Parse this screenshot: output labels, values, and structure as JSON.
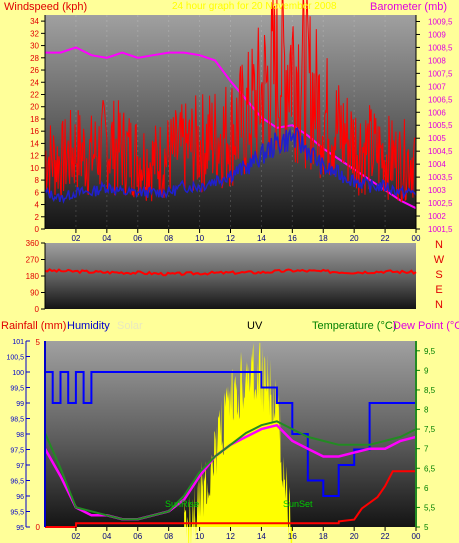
{
  "header": {
    "windspeed": "Windspeed (kph)",
    "subtitle": "24 hour graph for 20 November 2008",
    "barometer": "Barometer (mb)",
    "rainfall": "Rainfall (mm)",
    "humidity": "Humidity",
    "solar": "Solar",
    "uv": "UV",
    "temperature": "Temperature (°C)",
    "dewpoint": "Dew Point (°C)"
  },
  "colors": {
    "background": "#ffff99",
    "wind_gust": "#ff0000",
    "wind_avg": "#2020cc",
    "barometer": "#ff00ff",
    "direction": "#ff0000",
    "rain": "#ff0000",
    "humidity": "#0000ff",
    "uv": "#ffff00",
    "temperature": "#228b22",
    "dewpoint": "#ff00ff"
  },
  "chart_data": [
    {
      "type": "line",
      "xlabel": "",
      "x_ticks": [
        "02",
        "04",
        "06",
        "08",
        "10",
        "12",
        "14",
        "16",
        "18",
        "20",
        "22",
        "00"
      ],
      "y_left_ticks": [
        "0",
        "2",
        "4",
        "6",
        "8",
        "10",
        "12",
        "14",
        "16",
        "18",
        "20",
        "22",
        "24",
        "26",
        "28",
        "30",
        "32",
        "34"
      ],
      "y_left_lim": [
        0,
        35
      ],
      "y_right_ticks": [
        "1001,5",
        "1002",
        "1002,5",
        "1003",
        "1003,5",
        "1004",
        "1004,5",
        "1005",
        "1005,5",
        "1006",
        "1006,5",
        "1007",
        "1007,5",
        "1008",
        "1008,5",
        "1009",
        "1009,5"
      ],
      "y_right_lim": [
        1001.5,
        1009.75
      ],
      "series": [
        {
          "key": "gust",
          "axis": "left",
          "x": [
            0,
            1,
            2,
            3,
            4,
            5,
            6,
            7,
            8,
            9,
            10,
            11,
            12,
            13,
            14,
            15,
            16,
            17,
            18,
            19,
            20,
            21,
            22,
            23,
            24
          ],
          "values": [
            12,
            11,
            13,
            12,
            14,
            13,
            12,
            11,
            12,
            13,
            14,
            15,
            16,
            18,
            22,
            26,
            28,
            24,
            19,
            16,
            14,
            13,
            12,
            11,
            12
          ]
        },
        {
          "key": "avg",
          "axis": "left",
          "x": [
            0,
            1,
            2,
            3,
            4,
            5,
            6,
            7,
            8,
            9,
            10,
            11,
            12,
            13,
            14,
            15,
            16,
            17,
            18,
            19,
            20,
            21,
            22,
            23,
            24
          ],
          "values": [
            6,
            5,
            6,
            6,
            7,
            6,
            6,
            6,
            6,
            7,
            7,
            8,
            9,
            10,
            12,
            14,
            15,
            13,
            10,
            9,
            8,
            7,
            7,
            6,
            6
          ]
        },
        {
          "key": "baro",
          "axis": "right",
          "x": [
            0,
            1,
            2,
            3,
            4,
            5,
            6,
            7,
            8,
            9,
            10,
            11,
            12,
            13,
            14,
            15,
            16,
            17,
            18,
            19,
            20,
            21,
            22,
            23,
            24
          ],
          "values": [
            1008.3,
            1008.3,
            1008.5,
            1008.2,
            1008.1,
            1008.3,
            1008.1,
            1008.2,
            1008.3,
            1008.3,
            1008.2,
            1008.0,
            1007.2,
            1006.5,
            1005.8,
            1005.4,
            1005.5,
            1005.1,
            1004.6,
            1004.2,
            1003.8,
            1003.4,
            1003.0,
            1002.6,
            1002.3
          ]
        }
      ]
    },
    {
      "type": "line",
      "x_ticks": [],
      "y_left_ticks": [
        "0",
        "90",
        "180",
        "270",
        "360"
      ],
      "y_left_lim": [
        0,
        360
      ],
      "y_right_ticks": [
        "N",
        "W",
        "S",
        "E",
        "N"
      ],
      "series": [
        {
          "key": "dir",
          "axis": "left",
          "x": [
            0,
            2,
            4,
            6,
            8,
            10,
            12,
            14,
            16,
            18,
            20,
            22,
            24
          ],
          "values": [
            210,
            205,
            200,
            198,
            190,
            195,
            198,
            200,
            210,
            205,
            200,
            205,
            200
          ]
        }
      ]
    },
    {
      "type": "line",
      "x_ticks": [
        "02",
        "04",
        "06",
        "08",
        "10",
        "12",
        "14",
        "16",
        "18",
        "20",
        "22",
        "00"
      ],
      "y_left_ticks": [
        "0",
        "5"
      ],
      "y_humidity_ticks": [
        "95",
        "95,5",
        "96",
        "96,5",
        "97",
        "97,5",
        "98",
        "98,5",
        "99",
        "99,5",
        "100",
        "100,5",
        "101"
      ],
      "y_humidity_lim": [
        95,
        101
      ],
      "y_right_ticks": [
        "5",
        "5,5",
        "6",
        "6,5",
        "7",
        "7,5",
        "8",
        "8,5",
        "9",
        "9,5"
      ],
      "y_right_lim": [
        5,
        9.75
      ],
      "annotations": [
        "SunRise",
        "SunSet"
      ],
      "series": [
        {
          "key": "humidity",
          "axis": "hum",
          "x": [
            0,
            0.5,
            1,
            1.5,
            2,
            2.5,
            3,
            8,
            13,
            14,
            15,
            16,
            17,
            18,
            19,
            20,
            21,
            22,
            23,
            24
          ],
          "values": [
            100,
            99,
            100,
            99,
            100,
            99,
            100,
            100,
            100,
            99.5,
            99,
            98,
            96.5,
            96,
            97,
            97.5,
            99,
            99,
            99,
            99
          ]
        },
        {
          "key": "temp",
          "axis": "right",
          "x": [
            0,
            1,
            2,
            3,
            4,
            5,
            6,
            7,
            8,
            9,
            10,
            11,
            12,
            13,
            14,
            15,
            16,
            17,
            18,
            19,
            20,
            21,
            22,
            23,
            24
          ],
          "values": [
            7.4,
            6.5,
            5.5,
            5.4,
            5.3,
            5.2,
            5.2,
            5.3,
            5.4,
            5.8,
            6.4,
            6.8,
            7.1,
            7.4,
            7.6,
            7.7,
            7.5,
            7.3,
            7.2,
            7.1,
            7.1,
            7.1,
            7.2,
            7.3,
            7.5
          ]
        },
        {
          "key": "dew",
          "axis": "right",
          "x": [
            0,
            1,
            2,
            3,
            4,
            5,
            6,
            7,
            8,
            9,
            10,
            11,
            12,
            13,
            14,
            15,
            16,
            17,
            18,
            19,
            20,
            21,
            22,
            23,
            24
          ],
          "values": [
            7.0,
            6.3,
            5.5,
            5.3,
            5.3,
            5.2,
            5.2,
            5.3,
            5.4,
            5.7,
            6.3,
            6.8,
            7.1,
            7.3,
            7.5,
            7.6,
            7.2,
            7.0,
            6.8,
            6.8,
            6.9,
            7.0,
            7.0,
            7.2,
            7.3
          ]
        },
        {
          "key": "rain",
          "axis": "rain",
          "x": [
            0,
            2,
            2.01,
            13,
            14.5,
            15,
            16,
            19,
            19.01,
            20,
            20.5,
            21.5,
            22,
            22.5,
            24
          ],
          "values": [
            0,
            0,
            0.2,
            0.2,
            0.2,
            0.2,
            0.2,
            0.2,
            0.3,
            0.4,
            1,
            1.6,
            2.2,
            3,
            3
          ]
        },
        {
          "key": "uv",
          "axis": "hum",
          "x": [
            9,
            10,
            11,
            12,
            13,
            14,
            15,
            16
          ],
          "values": [
            96,
            97,
            98.5,
            100,
            101,
            101,
            100,
            95.5
          ]
        }
      ]
    }
  ]
}
